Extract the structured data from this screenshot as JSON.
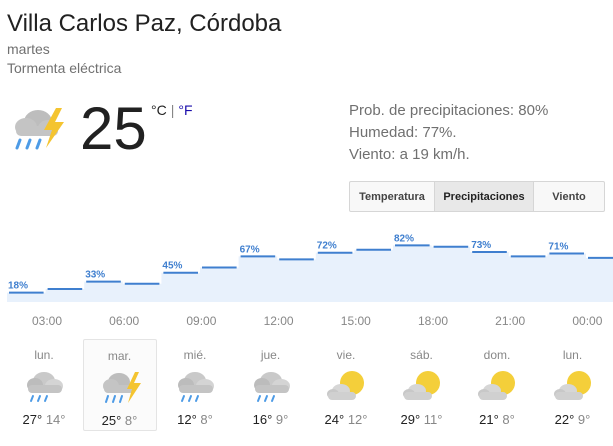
{
  "location": "Villa Carlos Paz, Córdoba",
  "day": "martes",
  "condition": "Tormenta eléctrica",
  "temperature": "25",
  "unit_c": "°C",
  "unit_sep": "|",
  "unit_f": "°F",
  "details": {
    "precipitation": "Prob. de precipitaciones: 80%",
    "humidity": "Humedad: 77%.",
    "wind": "Viento: a 19 km/h."
  },
  "tabs": [
    {
      "label": "Temperatura",
      "active": false
    },
    {
      "label": "Precipitaciones",
      "active": true
    },
    {
      "label": "Viento",
      "active": false
    }
  ],
  "chart_data": {
    "type": "area",
    "title": "",
    "ylim": [
      0,
      100
    ],
    "x": [
      "03:00",
      "04:30",
      "06:00",
      "07:30",
      "09:00",
      "10:30",
      "12:00",
      "13:30",
      "15:00",
      "16:30",
      "18:00",
      "19:30",
      "21:00",
      "22:30",
      "00:00",
      "01:30"
    ],
    "series": [
      {
        "values": [
          18,
          23,
          33,
          30,
          45,
          52,
          67,
          63,
          72,
          76,
          82,
          80,
          73,
          67,
          71,
          65
        ]
      }
    ],
    "point_labels": [
      {
        "index": 0,
        "text": "18%"
      },
      {
        "index": 2,
        "text": "33%"
      },
      {
        "index": 4,
        "text": "45%"
      },
      {
        "index": 6,
        "text": "67%"
      },
      {
        "index": 8,
        "text": "72%"
      },
      {
        "index": 10,
        "text": "82%"
      },
      {
        "index": 12,
        "text": "73%"
      },
      {
        "index": 14,
        "text": "71%"
      }
    ],
    "tick_labels": [
      "03:00",
      "06:00",
      "09:00",
      "12:00",
      "15:00",
      "18:00",
      "21:00",
      "00:00"
    ],
    "colors": {
      "line": "#3f7fcf",
      "fill": "#e8f1fc",
      "label": "#3f7fcf"
    }
  },
  "forecast": [
    {
      "day": "lun.",
      "high": "27°",
      "low": "14°",
      "icon": "rain-cloud-icon",
      "selected": false
    },
    {
      "day": "mar.",
      "high": "25°",
      "low": "8°",
      "icon": "thunderstorm-icon",
      "selected": true
    },
    {
      "day": "mié.",
      "high": "12°",
      "low": "8°",
      "icon": "rain-cloud-icon",
      "selected": false
    },
    {
      "day": "jue.",
      "high": "16°",
      "low": "9°",
      "icon": "rain-cloud-icon",
      "selected": false
    },
    {
      "day": "vie.",
      "high": "24°",
      "low": "12°",
      "icon": "partly-cloudy-icon",
      "selected": false
    },
    {
      "day": "sáb.",
      "high": "29°",
      "low": "11°",
      "icon": "partly-cloudy-icon",
      "selected": false
    },
    {
      "day": "dom.",
      "high": "21°",
      "low": "8°",
      "icon": "partly-cloudy-icon",
      "selected": false
    },
    {
      "day": "lun.",
      "high": "22°",
      "low": "9°",
      "icon": "partly-cloudy-icon",
      "selected": false
    }
  ]
}
